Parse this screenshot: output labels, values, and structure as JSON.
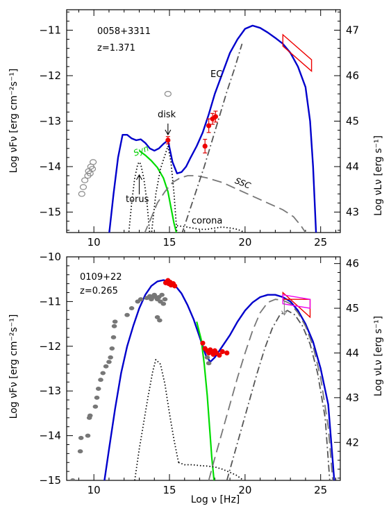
{
  "chart_data": [
    {
      "type": "line",
      "panel": "top",
      "source": "0058+3311",
      "redshift": "z=1.371",
      "xlabel": "",
      "ylabel": "Log νFν [erg cm⁻²s⁻¹]",
      "ylabel_right": "Log νLν [erg s⁻¹]",
      "xlim": [
        8.2,
        26.3
      ],
      "ylim": [
        -15.45,
        -10.55
      ],
      "x_ticks": [
        10,
        15,
        20,
        25
      ],
      "y_ticks": [
        -11,
        -12,
        -13,
        -14,
        -15
      ],
      "right_ticks": [
        47,
        46,
        45,
        44,
        43
      ],
      "right_offset": 58.0,
      "annotations": {
        "ec": "EC",
        "disk": "disk",
        "syn": "Syn",
        "torus": "torus",
        "ssc": "SSC",
        "corona": "corona"
      },
      "series": [
        {
          "role": "total",
          "color": "#0000cc",
          "style": "solid",
          "x": [
            11.0,
            11.3,
            11.6,
            11.9,
            12.2,
            12.5,
            12.8,
            13.1,
            13.4,
            13.7,
            14.0,
            14.3,
            14.6,
            14.9,
            15.2,
            15.5,
            15.8,
            16.1,
            16.4,
            16.8,
            17.2,
            17.6,
            18.0,
            18.5,
            19.0,
            19.5,
            20.0,
            20.5,
            21.0,
            21.5,
            22.0,
            22.5,
            23.0,
            23.5,
            24.0,
            24.3,
            24.5,
            24.7
          ],
          "y": [
            -15.5,
            -14.6,
            -13.8,
            -13.3,
            -13.3,
            -13.38,
            -13.42,
            -13.4,
            -13.48,
            -13.6,
            -13.65,
            -13.6,
            -13.5,
            -13.42,
            -13.9,
            -14.15,
            -14.12,
            -14.0,
            -13.8,
            -13.55,
            -13.25,
            -12.85,
            -12.4,
            -11.95,
            -11.5,
            -11.2,
            -10.97,
            -10.9,
            -10.95,
            -11.05,
            -11.17,
            -11.3,
            -11.5,
            -11.8,
            -12.25,
            -13.0,
            -14.0,
            -15.5
          ]
        },
        {
          "role": "synchrotron",
          "color": "#00dd00",
          "style": "solid",
          "x": [
            13.0,
            13.4,
            13.8,
            14.2,
            14.6,
            14.9,
            15.1,
            15.3,
            15.5
          ],
          "y": [
            -13.65,
            -13.75,
            -13.87,
            -14.02,
            -14.25,
            -14.55,
            -14.9,
            -15.25,
            -15.5
          ]
        },
        {
          "role": "torus",
          "color": "#000000",
          "style": "dotted",
          "x": [
            12.3,
            12.5,
            12.7,
            12.9,
            13.0,
            13.1,
            13.3,
            13.5,
            13.7
          ],
          "y": [
            -15.5,
            -14.8,
            -14.25,
            -13.95,
            -13.9,
            -13.95,
            -14.25,
            -14.75,
            -15.5
          ]
        },
        {
          "role": "disk",
          "color": "#000000",
          "style": "dotted",
          "x": [
            13.8,
            14.1,
            14.4,
            14.7,
            14.9,
            15.1,
            15.3,
            15.5
          ],
          "y": [
            -15.5,
            -14.6,
            -14.05,
            -13.75,
            -13.55,
            -13.9,
            -14.6,
            -15.5
          ]
        },
        {
          "role": "corona",
          "color": "#000000",
          "style": "dotted",
          "x": [
            15.5,
            16.0,
            16.5,
            17.0,
            17.5,
            18.0,
            18.5,
            19.0,
            19.5,
            20.0,
            20.3
          ],
          "y": [
            -15.3,
            -15.32,
            -15.35,
            -15.38,
            -15.38,
            -15.35,
            -15.33,
            -15.35,
            -15.38,
            -15.45,
            -15.55
          ]
        },
        {
          "role": "ssc",
          "color": "#777777",
          "style": "dashed",
          "x": [
            13.3,
            13.7,
            14.2,
            14.7,
            15.2,
            15.7,
            16.2,
            16.8,
            17.5,
            18.5,
            19.5,
            20.5,
            21.5,
            22.5,
            23.2,
            23.7,
            24.1
          ],
          "y": [
            -15.5,
            -15.2,
            -14.8,
            -14.55,
            -14.35,
            -14.25,
            -14.2,
            -14.2,
            -14.25,
            -14.35,
            -14.5,
            -14.65,
            -14.8,
            -14.95,
            -15.1,
            -15.3,
            -15.5
          ]
        },
        {
          "role": "ec",
          "color": "#555555",
          "style": "dashdot",
          "x": [
            15.8,
            16.3,
            16.8,
            17.3,
            17.8,
            18.3,
            18.8,
            19.3,
            19.8
          ],
          "y": [
            -15.5,
            -15.0,
            -14.5,
            -14.0,
            -13.45,
            -12.9,
            -12.35,
            -11.85,
            -11.3
          ]
        }
      ],
      "data_points": {
        "radio_open": {
          "x": [
            9.2,
            9.3,
            9.4,
            9.6,
            9.65,
            9.75,
            9.8,
            9.9,
            9.95,
            14.9
          ],
          "y": [
            -14.6,
            -14.45,
            -14.3,
            -14.2,
            -14.1,
            -14.15,
            -14.0,
            -14.05,
            -13.9,
            -12.4
          ]
        },
        "red_points": {
          "x": [
            14.9,
            17.35,
            17.6,
            17.85,
            18.05
          ],
          "y": [
            -13.42,
            -13.55,
            -13.1,
            -12.95,
            -12.9
          ]
        },
        "red_errors": [
          0.08,
          0.15,
          0.15,
          0.12,
          0.12
        ],
        "gamma_bowtie_x": [
          22.5,
          22.5,
          24.4,
          24.4
        ],
        "gamma_bowtie_y": [
          -11.1,
          -11.35,
          -11.9,
          -11.65
        ]
      }
    },
    {
      "type": "line",
      "panel": "bottom",
      "source": "0109+22",
      "redshift": "z=0.265",
      "xlabel": "Log ν [Hz]",
      "ylabel": "Log νFν [erg cm⁻²s⁻¹]",
      "ylabel_right": "Log νLν [erg s⁻¹]",
      "xlim": [
        8.2,
        26.3
      ],
      "ylim": [
        -15.0,
        -10.0
      ],
      "x_ticks": [
        10,
        15,
        20,
        25
      ],
      "y_ticks": [
        -10,
        -11,
        -12,
        -13,
        -14,
        -15
      ],
      "right_ticks": [
        46,
        45,
        44,
        43,
        42
      ],
      "right_offset": 56.15,
      "series": [
        {
          "role": "total",
          "color": "#0000cc",
          "style": "solid",
          "x": [
            10.7,
            11.0,
            11.4,
            11.8,
            12.2,
            12.6,
            13.0,
            13.4,
            13.8,
            14.2,
            14.6,
            15.0,
            15.4,
            15.8,
            16.2,
            16.6,
            17.0,
            17.4,
            17.7,
            18.0,
            18.5,
            19.0,
            19.5,
            20.0,
            20.5,
            21.0,
            21.5,
            22.0,
            22.5,
            23.0,
            23.5,
            24.0,
            24.5,
            25.0,
            25.5,
            25.9
          ],
          "y": [
            -15.0,
            -14.3,
            -13.4,
            -12.6,
            -12.0,
            -11.55,
            -11.15,
            -10.85,
            -10.65,
            -10.55,
            -10.52,
            -10.55,
            -10.65,
            -10.82,
            -11.08,
            -11.4,
            -11.8,
            -12.2,
            -12.35,
            -12.25,
            -12.0,
            -11.75,
            -11.45,
            -11.2,
            -11.02,
            -10.9,
            -10.85,
            -10.85,
            -10.9,
            -11.0,
            -11.2,
            -11.5,
            -11.9,
            -12.5,
            -13.3,
            -15.0
          ]
        },
        {
          "role": "synchrotron",
          "color": "#00dd00",
          "style": "solid",
          "x": [
            16.8,
            17.1,
            17.3,
            17.5,
            17.65,
            17.8,
            17.95
          ],
          "y": [
            -11.45,
            -11.85,
            -12.4,
            -13.1,
            -13.8,
            -14.5,
            -15.0
          ]
        },
        {
          "role": "disk",
          "color": "#000000",
          "style": "dotted",
          "x": [
            12.7,
            13.0,
            13.3,
            13.6,
            13.9,
            14.1,
            14.4,
            14.7,
            15.0,
            15.3,
            15.6
          ],
          "y": [
            -15.0,
            -14.3,
            -13.7,
            -13.1,
            -12.55,
            -12.3,
            -12.4,
            -12.85,
            -13.5,
            -14.1,
            -14.6
          ]
        },
        {
          "role": "corona",
          "color": "#000000",
          "style": "dotted",
          "x": [
            15.6,
            16.0,
            16.5,
            17.0,
            17.5,
            18.0,
            18.5,
            19.0,
            19.4,
            19.7,
            19.9
          ],
          "y": [
            -14.6,
            -14.65,
            -14.65,
            -14.67,
            -14.68,
            -14.7,
            -14.75,
            -14.82,
            -14.88,
            -14.95,
            -15.0
          ]
        },
        {
          "role": "ssc",
          "color": "#777777",
          "style": "dashed",
          "x": [
            17.6,
            18.0,
            18.5,
            19.0,
            19.5,
            20.0,
            20.5,
            21.0,
            21.5,
            22.0,
            22.5,
            23.0,
            23.5,
            24.0,
            24.5,
            25.0,
            25.5,
            25.8
          ],
          "y": [
            -15.0,
            -14.5,
            -13.9,
            -13.3,
            -12.7,
            -12.15,
            -11.65,
            -11.25,
            -11.02,
            -10.95,
            -10.97,
            -11.05,
            -11.25,
            -11.55,
            -12.0,
            -12.7,
            -13.8,
            -15.0
          ]
        },
        {
          "role": "ec",
          "color": "#555555",
          "style": "dashdot",
          "x": [
            18.8,
            19.3,
            19.8,
            20.3,
            20.8,
            21.3,
            21.8,
            22.3,
            22.8,
            23.3,
            23.8,
            24.3,
            24.8,
            25.3,
            25.6
          ],
          "y": [
            -15.0,
            -14.4,
            -13.8,
            -13.2,
            -12.6,
            -12.05,
            -11.6,
            -11.3,
            -11.2,
            -11.3,
            -11.55,
            -11.95,
            -12.6,
            -13.6,
            -15.0
          ]
        }
      ],
      "data_points": {
        "grey_points": {
          "x": [
            8.6,
            9.1,
            9.15,
            9.6,
            9.7,
            9.75,
            10.1,
            10.2,
            10.3,
            10.45,
            10.6,
            10.8,
            11.0,
            11.1,
            11.2,
            11.3,
            11.35,
            11.4,
            12.2,
            12.5,
            12.9,
            13.1,
            13.5,
            13.7,
            13.8,
            13.9,
            14.0,
            14.1,
            14.2,
            14.3,
            14.4,
            14.5,
            14.6,
            14.7,
            14.2,
            14.35,
            17.5,
            17.6
          ],
          "y": [
            -15.0,
            -14.35,
            -14.05,
            -14.0,
            -13.6,
            -13.55,
            -13.35,
            -13.15,
            -12.95,
            -12.75,
            -12.6,
            -12.45,
            -12.35,
            -12.25,
            -12.05,
            -11.8,
            -11.55,
            -11.45,
            -11.3,
            -11.15,
            -11.0,
            -10.95,
            -10.92,
            -10.88,
            -10.95,
            -10.9,
            -10.85,
            -10.9,
            -10.95,
            -10.9,
            -11.0,
            -10.85,
            -11.05,
            -10.95,
            -11.35,
            -11.42,
            -12.25,
            -12.38
          ]
        },
        "red_points": {
          "x": [
            14.75,
            14.85,
            14.95,
            15.05,
            15.15,
            15.25,
            15.35,
            14.9,
            15.1,
            17.2,
            17.35,
            17.5,
            17.6,
            17.7,
            17.8,
            17.9,
            18.0,
            18.1,
            18.3,
            18.5,
            18.8
          ],
          "y": [
            -10.58,
            -10.55,
            -10.6,
            -10.57,
            -10.62,
            -10.6,
            -10.65,
            -10.53,
            -10.63,
            -11.93,
            -12.05,
            -12.1,
            -12.15,
            -12.08,
            -12.12,
            -12.18,
            -12.1,
            -12.15,
            -12.2,
            -12.12,
            -12.15
          ]
        },
        "gamma_bowtie_x": [
          22.5,
          22.5,
          24.3,
          24.3
        ],
        "gamma_bowtie_y": [
          -10.8,
          -10.95,
          -10.95,
          -11.35
        ],
        "magenta_box_x": [
          22.5,
          22.5,
          24.3,
          24.3
        ],
        "magenta_box_y": [
          -10.85,
          -11.05,
          -11.15,
          -10.95
        ],
        "upper_limit": {
          "x": 22.6,
          "y_from": -11.0,
          "y_to": -11.3
        }
      }
    }
  ]
}
